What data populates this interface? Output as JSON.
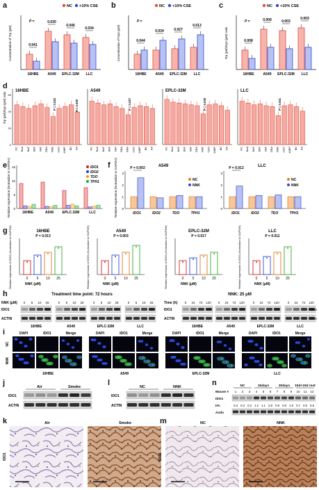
{
  "panel_labels": [
    "a",
    "b",
    "c",
    "d",
    "e",
    "f",
    "g",
    "h",
    "i",
    "j",
    "k",
    "l",
    "m",
    "n"
  ],
  "colors": {
    "nc": "#e74c3c",
    "cse": "#2d4bd6",
    "ido1": "#d61f1f",
    "ido2": "#1f3ad6",
    "tdo": "#f29b0c",
    "tph1": "#27a33a",
    "green": "#33aa33",
    "orange": "#e07b22",
    "blue": "#2d4bd6",
    "red": "#d61f1f",
    "ihc_brown": "#a86a3d",
    "ihc_bg": "#e8e2ea"
  },
  "legend_abc": {
    "nc": "NC",
    "cse": "+10% CSE"
  },
  "cells": [
    "16HBE",
    "A549",
    "EPLC-32M",
    "LLC"
  ],
  "panel_a": {
    "ylabel": "Concentration of Trp (μM)",
    "p_label": "P =",
    "pvals": [
      "0.041",
      "0.030",
      "0.046",
      "0.034"
    ]
  },
  "panel_b": {
    "ylabel": "Concentration of Kyn (μM)",
    "p_label": "P =",
    "pvals": [
      "0.044",
      "0.034",
      "0.027",
      "0.013"
    ]
  },
  "panel_c": {
    "ylabel": "Trp (μM)/Kyn (μM) ratio",
    "p_label": "P =",
    "pvals": [
      "0.008",
      "0.009",
      "0.003",
      "0.003"
    ]
  },
  "panel_d": {
    "ylabel": "Trp (μM)/Kyn (μM) ratio",
    "ticks": [
      "0",
      "20",
      "40",
      "60"
    ],
    "treatments": [
      "NC",
      "BaA",
      "BaP",
      "BbF",
      "BkF",
      "DBA",
      "NNK",
      "CdCl",
      "4ABP",
      "BD",
      "AA"
    ],
    "titles": [
      "16HBE",
      "A549",
      "EPLC-32M",
      "LLC"
    ],
    "p_label": "P =",
    "pvals": [
      "0.022",
      "0.049",
      "0.027",
      "0.035",
      "0.041"
    ]
  },
  "panel_e": {
    "ylabel": "Relative expression (Normalize to GAPDH)",
    "legend": [
      "IDO1",
      "IDO2",
      "TDO",
      "TPH1"
    ],
    "ticks": [
      "0",
      "5",
      "10",
      "15"
    ]
  },
  "panel_f": {
    "ylabel": "Relative expression (Normalize to GAPDH)",
    "titles": [
      "A549",
      "LLC"
    ],
    "legend": [
      "NC",
      "NNK"
    ],
    "genes": [
      "IDO1",
      "IDO2",
      "TDO",
      "TPH1"
    ],
    "pvals": [
      "P = 0.002",
      "P = 0.012"
    ],
    "ticks": [
      "0",
      "1",
      "2",
      "3"
    ]
  },
  "panel_g": {
    "ylabel": "Relative expression of IDO1 (Normalize to GAPDH)",
    "titles": [
      "16HBE",
      "A549",
      "EPLC-32M",
      "LLC"
    ],
    "pvals": [
      "P = 0.013",
      "P = 0.003",
      "P = 0.017",
      "P = 0.011"
    ],
    "xticks": [
      "0",
      "5",
      "10",
      "25"
    ],
    "xlabel": "NNK (μM)"
  },
  "panel_h": {
    "title_left": "Treatment time point: 72 hours",
    "title_right": "NNK: 25 μM",
    "row_labels": [
      "IDO1",
      "ACTIN"
    ],
    "nnk_label": "NNK (μM)",
    "nnk_values": [
      "0",
      "5",
      "10",
      "25"
    ],
    "time_label": "Time (h)",
    "time_values": [
      "0",
      "24",
      "72",
      "120"
    ],
    "kda": [
      "45kD",
      "42kD"
    ],
    "cells": [
      "16HBE",
      "A549",
      "EPLC-32M",
      "LLC"
    ]
  },
  "panel_i": {
    "channels": [
      "DAPI",
      "IDO1",
      "Merge"
    ],
    "rows": [
      "NC",
      "NNK"
    ],
    "cells": [
      "16HBE",
      "A549",
      "EPLC-32M",
      "LLC"
    ]
  },
  "panel_j": {
    "groups": [
      "Air",
      "Smoke"
    ],
    "rows": [
      "IDO1",
      "ACTIN"
    ]
  },
  "panel_l": {
    "groups": [
      "NC",
      "NNK"
    ],
    "rows": [
      "IDO1",
      "ACTIN"
    ]
  },
  "panel_n": {
    "groups": [
      "NC",
      "15days",
      "30days",
      "15d+15d rest"
    ],
    "mouse_label": "Mouse #",
    "mice": [
      "1",
      "2",
      "3",
      "4",
      "5",
      "6",
      "7",
      "8",
      "9",
      "10",
      "11",
      "12"
    ],
    "rows": [
      "IDO1",
      "I/A:",
      "Actin"
    ],
    "ratios": [
      "0.3",
      "0.3",
      "0.3",
      "1.2",
      "1.1",
      "0.8",
      "0.8",
      "0.9",
      "1.0",
      "0.7",
      "0.6",
      "0.5"
    ]
  },
  "panel_k": {
    "titles": [
      "Air",
      "Smoke"
    ],
    "ylabel": "IDO1"
  },
  "panel_m": {
    "titles": [
      "NC",
      "NNK"
    ],
    "ylabel": "IDO1"
  }
}
